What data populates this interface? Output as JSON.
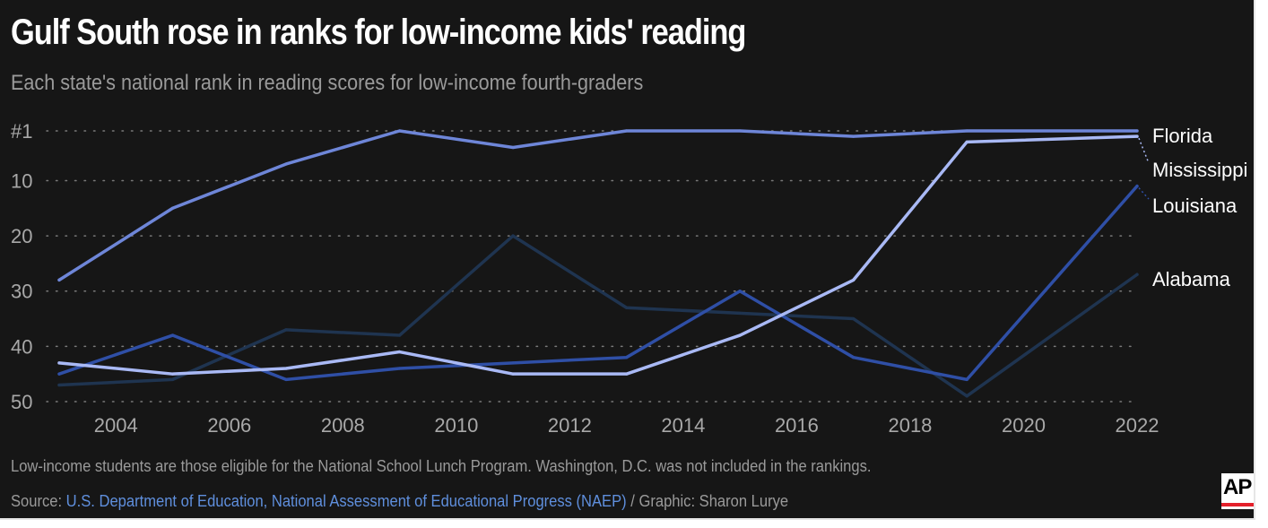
{
  "header": {
    "title": "Gulf South rose in ranks for low-income kids' reading",
    "subtitle": "Each state's national rank in reading scores for low-income fourth-graders"
  },
  "footer": {
    "note": "Low-income students are those eligible for the National School Lunch Program. Washington, D.C. was not included in the rankings.",
    "source_prefix": "Source: ",
    "source_link": "U.S. Department of Education, National Assessment of Educational Progress (NAEP)",
    "source_suffix": " / Graphic: Sharon Lurye",
    "logo": "AP"
  },
  "colors": {
    "background": "#161616",
    "grid": "#7a7a7a",
    "axis_text": "#a8a8a8",
    "label_text": "#ffffff",
    "link": "#5f8fdd",
    "logo_bar": "#e4202a"
  },
  "chart_data": {
    "type": "line",
    "title": "",
    "xlabel": "",
    "ylabel": "",
    "x": [
      2003,
      2005,
      2007,
      2009,
      2011,
      2013,
      2015,
      2017,
      2019,
      2022
    ],
    "xticks": [
      2004,
      2006,
      2008,
      2010,
      2012,
      2014,
      2016,
      2018,
      2020,
      2022
    ],
    "yticks": [
      1,
      10,
      20,
      30,
      40,
      50
    ],
    "ytick_labels": [
      "#1",
      "10",
      "20",
      "30",
      "40",
      "50"
    ],
    "ylim": [
      50,
      1
    ],
    "y_inverted": true,
    "xlim": [
      2003,
      2022
    ],
    "grid": "horizontal dotted",
    "legend": "direct labels at line ends",
    "series": [
      {
        "name": "Florida",
        "color": "#6e86d8",
        "values": [
          28,
          15,
          7,
          1,
          4,
          1,
          1,
          2,
          1,
          1
        ]
      },
      {
        "name": "Mississippi",
        "color": "#a9b9f5",
        "values": [
          43,
          45,
          44,
          41,
          45,
          45,
          38,
          28,
          3,
          2
        ]
      },
      {
        "name": "Louisiana",
        "color": "#2f4fa6",
        "values": [
          45,
          38,
          46,
          44,
          43,
          42,
          30,
          42,
          46,
          11
        ]
      },
      {
        "name": "Alabama",
        "color": "#1f3450",
        "values": [
          47,
          46,
          37,
          38,
          20,
          33,
          34,
          35,
          49,
          27
        ]
      }
    ]
  }
}
